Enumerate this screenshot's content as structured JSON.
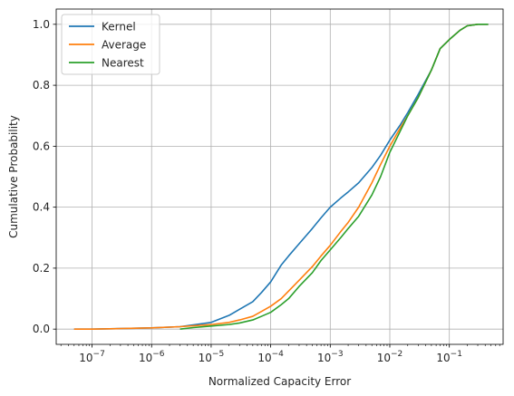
{
  "chart_data": {
    "type": "line",
    "title": "",
    "xlabel": "Normalized Capacity Error",
    "ylabel": "Cumulative Probability",
    "xscale": "log",
    "xlim": [
      2.5e-08,
      0.8
    ],
    "ylim": [
      -0.05,
      1.05
    ],
    "xticks": [
      {
        "value": 1e-07,
        "base": "10",
        "exp": "−7"
      },
      {
        "value": 1e-06,
        "base": "10",
        "exp": "−6"
      },
      {
        "value": 1e-05,
        "base": "10",
        "exp": "−5"
      },
      {
        "value": 0.0001,
        "base": "10",
        "exp": "−4"
      },
      {
        "value": 0.001,
        "base": "10",
        "exp": "−3"
      },
      {
        "value": 0.01,
        "base": "10",
        "exp": "−2"
      },
      {
        "value": 0.1,
        "base": "10",
        "exp": "−1"
      }
    ],
    "yticks": [
      {
        "value": 0.0,
        "label": "0.0"
      },
      {
        "value": 0.2,
        "label": "0.2"
      },
      {
        "value": 0.4,
        "label": "0.4"
      },
      {
        "value": 0.6,
        "label": "0.6"
      },
      {
        "value": 0.8,
        "label": "0.8"
      },
      {
        "value": 1.0,
        "label": "1.0"
      }
    ],
    "grid": true,
    "legend_position": "top-left",
    "series": [
      {
        "name": "Kernel",
        "color": "#1f77b4",
        "points": [
          [
            5e-08,
            0.0
          ],
          [
            1e-07,
            0.0
          ],
          [
            1e-06,
            0.004
          ],
          [
            3e-06,
            0.008
          ],
          [
            1e-05,
            0.022
          ],
          [
            2e-05,
            0.045
          ],
          [
            3e-05,
            0.065
          ],
          [
            5e-05,
            0.09
          ],
          [
            7e-05,
            0.12
          ],
          [
            0.0001,
            0.155
          ],
          [
            0.00015,
            0.21
          ],
          [
            0.0002,
            0.24
          ],
          [
            0.0003,
            0.28
          ],
          [
            0.0005,
            0.33
          ],
          [
            0.0007,
            0.365
          ],
          [
            0.001,
            0.4
          ],
          [
            0.0015,
            0.43
          ],
          [
            0.002,
            0.45
          ],
          [
            0.003,
            0.48
          ],
          [
            0.005,
            0.53
          ],
          [
            0.007,
            0.57
          ],
          [
            0.01,
            0.62
          ],
          [
            0.015,
            0.67
          ],
          [
            0.02,
            0.71
          ],
          [
            0.03,
            0.77
          ],
          [
            0.05,
            0.85
          ],
          [
            0.07,
            0.92
          ],
          [
            0.1,
            0.95
          ],
          [
            0.15,
            0.98
          ],
          [
            0.2,
            0.995
          ],
          [
            0.3,
            1.0
          ],
          [
            0.45,
            1.0
          ]
        ]
      },
      {
        "name": "Average",
        "color": "#ff7f0e",
        "points": [
          [
            5e-08,
            0.0
          ],
          [
            1e-07,
            0.0
          ],
          [
            1e-06,
            0.004
          ],
          [
            3e-06,
            0.008
          ],
          [
            1e-05,
            0.015
          ],
          [
            2e-05,
            0.022
          ],
          [
            3e-05,
            0.03
          ],
          [
            5e-05,
            0.042
          ],
          [
            7e-05,
            0.058
          ],
          [
            0.0001,
            0.075
          ],
          [
            0.00015,
            0.1
          ],
          [
            0.0002,
            0.125
          ],
          [
            0.0003,
            0.16
          ],
          [
            0.0005,
            0.205
          ],
          [
            0.0007,
            0.24
          ],
          [
            0.001,
            0.275
          ],
          [
            0.0015,
            0.32
          ],
          [
            0.002,
            0.35
          ],
          [
            0.003,
            0.4
          ],
          [
            0.005,
            0.48
          ],
          [
            0.007,
            0.54
          ],
          [
            0.01,
            0.6
          ],
          [
            0.015,
            0.66
          ],
          [
            0.02,
            0.7
          ],
          [
            0.03,
            0.76
          ],
          [
            0.05,
            0.85
          ],
          [
            0.07,
            0.92
          ],
          [
            0.1,
            0.95
          ],
          [
            0.15,
            0.98
          ],
          [
            0.2,
            0.995
          ],
          [
            0.3,
            1.0
          ],
          [
            0.45,
            1.0
          ]
        ]
      },
      {
        "name": "Nearest",
        "color": "#2ca02c",
        "points": [
          [
            3e-06,
            0.0
          ],
          [
            5e-06,
            0.005
          ],
          [
            1e-05,
            0.01
          ],
          [
            2e-05,
            0.015
          ],
          [
            3e-05,
            0.02
          ],
          [
            5e-05,
            0.03
          ],
          [
            7e-05,
            0.042
          ],
          [
            0.0001,
            0.055
          ],
          [
            0.00015,
            0.08
          ],
          [
            0.0002,
            0.1
          ],
          [
            0.0003,
            0.14
          ],
          [
            0.0005,
            0.185
          ],
          [
            0.0007,
            0.225
          ],
          [
            0.001,
            0.26
          ],
          [
            0.0015,
            0.3
          ],
          [
            0.002,
            0.33
          ],
          [
            0.003,
            0.37
          ],
          [
            0.005,
            0.44
          ],
          [
            0.007,
            0.5
          ],
          [
            0.01,
            0.58
          ],
          [
            0.015,
            0.65
          ],
          [
            0.02,
            0.7
          ],
          [
            0.03,
            0.76
          ],
          [
            0.05,
            0.85
          ],
          [
            0.07,
            0.92
          ],
          [
            0.1,
            0.95
          ],
          [
            0.15,
            0.98
          ],
          [
            0.2,
            0.995
          ],
          [
            0.3,
            1.0
          ],
          [
            0.45,
            1.0
          ]
        ]
      }
    ]
  }
}
